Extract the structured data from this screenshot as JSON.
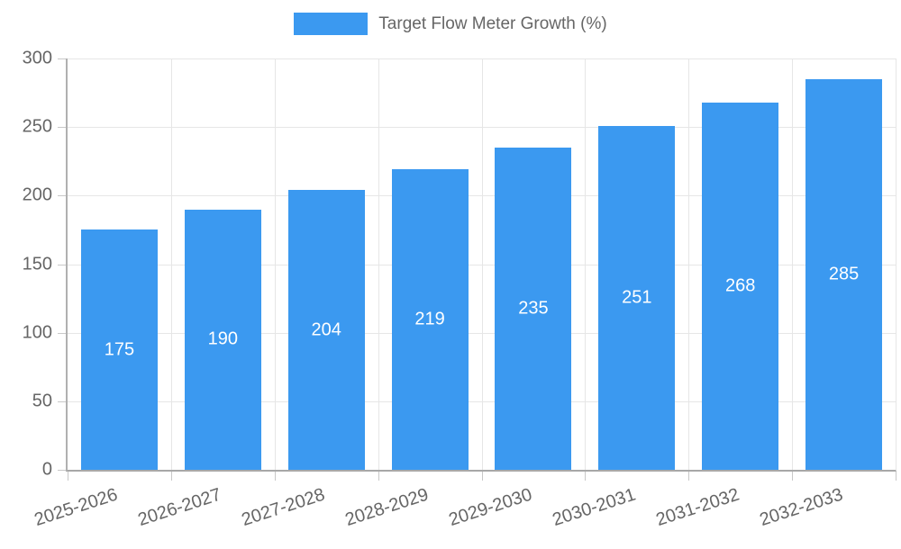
{
  "legend": {
    "label": "Target Flow Meter Growth (%)"
  },
  "chart_data": {
    "type": "bar",
    "title": "",
    "categories": [
      "2025-2026",
      "2026-2027",
      "2027-2028",
      "2028-2029",
      "2029-2030",
      "2030-2031",
      "2031-2032",
      "2032-2033"
    ],
    "series": [
      {
        "name": "Target Flow Meter Growth (%)",
        "values": [
          175,
          190,
          204,
          219,
          235,
          251,
          268,
          285
        ]
      }
    ],
    "xlabel": "",
    "ylabel": "",
    "ylim": [
      0,
      300
    ],
    "ytick_step": 50,
    "yticks": [
      0,
      50,
      100,
      150,
      200,
      250,
      300
    ],
    "grid": true,
    "legend_position": "top",
    "value_labels": "inside-center",
    "colors": {
      "bar": "#3b99f0",
      "value_label": "#ffffff",
      "axis_text": "#666666",
      "gridline": "#e6e6e6",
      "axis_line": "#b0b0b0",
      "tick": "#c8c8c8"
    }
  }
}
